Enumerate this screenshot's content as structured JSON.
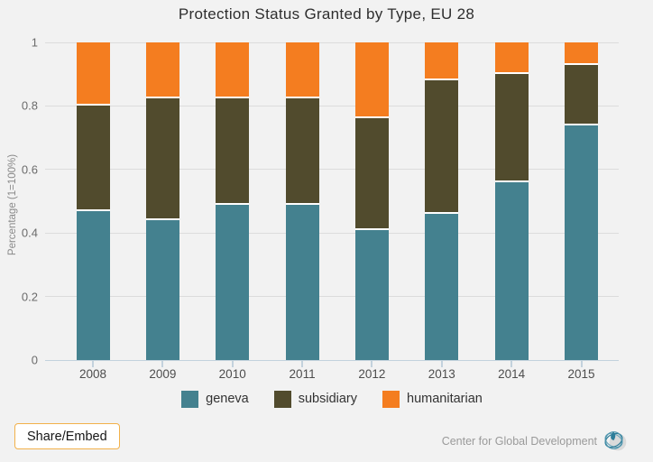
{
  "chart_data": {
    "type": "bar",
    "stacked": true,
    "title": "Protection Status Granted by Type, EU 28",
    "categories": [
      "2008",
      "2009",
      "2010",
      "2011",
      "2012",
      "2013",
      "2014",
      "2015"
    ],
    "series": [
      {
        "name": "geneva",
        "color": "#44818f",
        "values": [
          0.47,
          0.44,
          0.49,
          0.49,
          0.41,
          0.46,
          0.56,
          0.74
        ]
      },
      {
        "name": "subsidiary",
        "color": "#514b2d",
        "values": [
          0.33,
          0.385,
          0.335,
          0.335,
          0.35,
          0.42,
          0.34,
          0.19
        ]
      },
      {
        "name": "humanitarian",
        "color": "#f47d20",
        "values": [
          0.2,
          0.175,
          0.175,
          0.175,
          0.24,
          0.12,
          0.1,
          0.07
        ]
      }
    ],
    "xlabel": "",
    "ylabel": "Percentage (1=100%)",
    "ylim": [
      0,
      1
    ],
    "yticks": [
      "0",
      "0.2",
      "0.4",
      "0.6",
      "0.8",
      "1"
    ],
    "grid": true,
    "legend_position": "bottom"
  },
  "colors": {
    "background": "#f2f2f2",
    "gridline": "#dcdcdc",
    "axis": "#c3d2dd",
    "segment_gap": "#ffffff",
    "share_button_border": "#f2b14a"
  },
  "footer": {
    "share_button_label": "Share/Embed",
    "attribution": "Center for Global Development"
  }
}
